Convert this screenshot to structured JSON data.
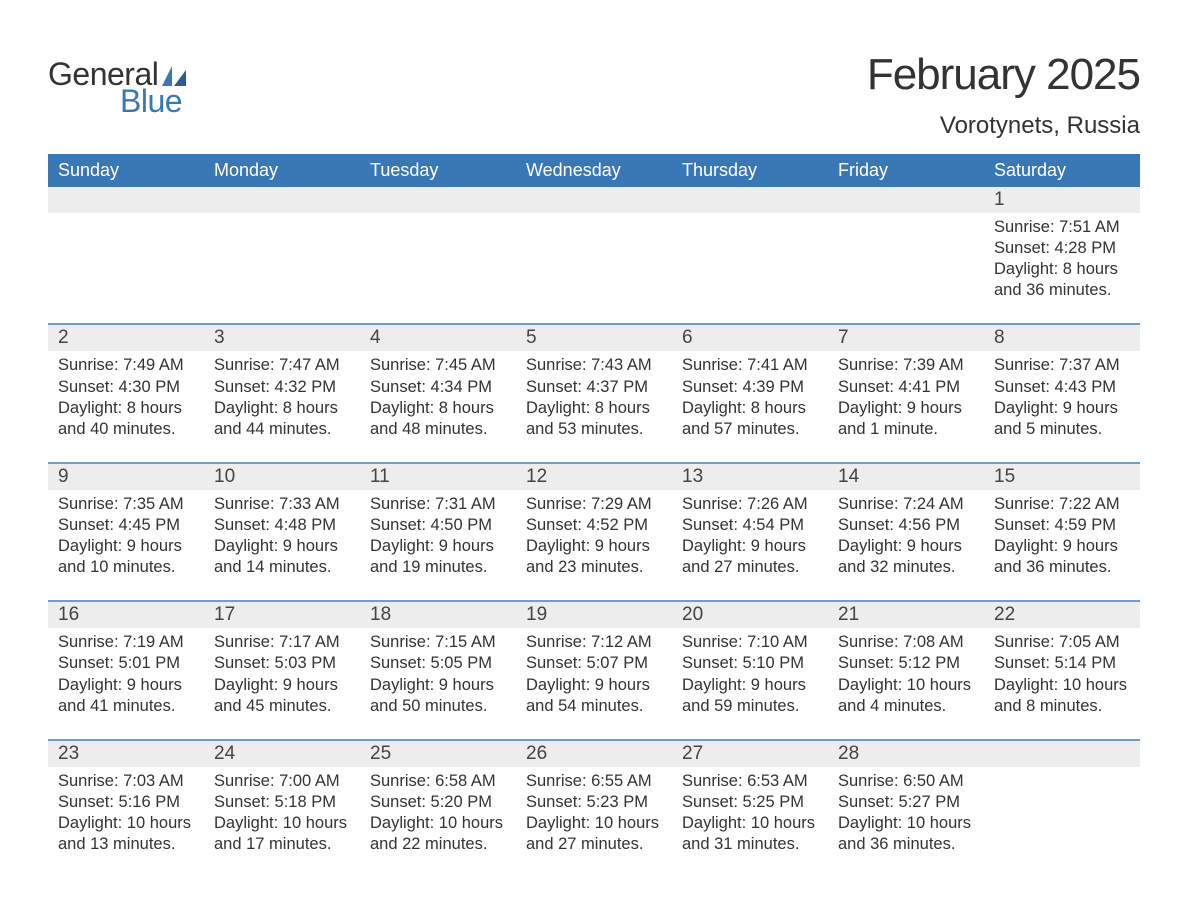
{
  "colors": {
    "header_bg": "#3a78b5",
    "header_text": "#ffffff",
    "week_border": "#6e9fcf",
    "daynum_bg": "#ededed",
    "body_text": "#333333",
    "logo_blue": "#3a78b5",
    "page_bg": "#ffffff"
  },
  "typography": {
    "title_fontsize": 44,
    "location_fontsize": 24,
    "weekday_fontsize": 18,
    "daynum_fontsize": 19,
    "body_fontsize": 16.5,
    "logo_fontsize": 32
  },
  "logo": {
    "word1": "General",
    "word2": "Blue"
  },
  "header": {
    "month_title": "February 2025",
    "location": "Vorotynets, Russia"
  },
  "weekdays": [
    "Sunday",
    "Monday",
    "Tuesday",
    "Wednesday",
    "Thursday",
    "Friday",
    "Saturday"
  ],
  "weeks": [
    [
      {
        "n": "",
        "sr": "",
        "ss": "",
        "d1": "",
        "d2": ""
      },
      {
        "n": "",
        "sr": "",
        "ss": "",
        "d1": "",
        "d2": ""
      },
      {
        "n": "",
        "sr": "",
        "ss": "",
        "d1": "",
        "d2": ""
      },
      {
        "n": "",
        "sr": "",
        "ss": "",
        "d1": "",
        "d2": ""
      },
      {
        "n": "",
        "sr": "",
        "ss": "",
        "d1": "",
        "d2": ""
      },
      {
        "n": "",
        "sr": "",
        "ss": "",
        "d1": "",
        "d2": ""
      },
      {
        "n": "1",
        "sr": "Sunrise: 7:51 AM",
        "ss": "Sunset: 4:28 PM",
        "d1": "Daylight: 8 hours",
        "d2": "and 36 minutes."
      }
    ],
    [
      {
        "n": "2",
        "sr": "Sunrise: 7:49 AM",
        "ss": "Sunset: 4:30 PM",
        "d1": "Daylight: 8 hours",
        "d2": "and 40 minutes."
      },
      {
        "n": "3",
        "sr": "Sunrise: 7:47 AM",
        "ss": "Sunset: 4:32 PM",
        "d1": "Daylight: 8 hours",
        "d2": "and 44 minutes."
      },
      {
        "n": "4",
        "sr": "Sunrise: 7:45 AM",
        "ss": "Sunset: 4:34 PM",
        "d1": "Daylight: 8 hours",
        "d2": "and 48 minutes."
      },
      {
        "n": "5",
        "sr": "Sunrise: 7:43 AM",
        "ss": "Sunset: 4:37 PM",
        "d1": "Daylight: 8 hours",
        "d2": "and 53 minutes."
      },
      {
        "n": "6",
        "sr": "Sunrise: 7:41 AM",
        "ss": "Sunset: 4:39 PM",
        "d1": "Daylight: 8 hours",
        "d2": "and 57 minutes."
      },
      {
        "n": "7",
        "sr": "Sunrise: 7:39 AM",
        "ss": "Sunset: 4:41 PM",
        "d1": "Daylight: 9 hours",
        "d2": "and 1 minute."
      },
      {
        "n": "8",
        "sr": "Sunrise: 7:37 AM",
        "ss": "Sunset: 4:43 PM",
        "d1": "Daylight: 9 hours",
        "d2": "and 5 minutes."
      }
    ],
    [
      {
        "n": "9",
        "sr": "Sunrise: 7:35 AM",
        "ss": "Sunset: 4:45 PM",
        "d1": "Daylight: 9 hours",
        "d2": "and 10 minutes."
      },
      {
        "n": "10",
        "sr": "Sunrise: 7:33 AM",
        "ss": "Sunset: 4:48 PM",
        "d1": "Daylight: 9 hours",
        "d2": "and 14 minutes."
      },
      {
        "n": "11",
        "sr": "Sunrise: 7:31 AM",
        "ss": "Sunset: 4:50 PM",
        "d1": "Daylight: 9 hours",
        "d2": "and 19 minutes."
      },
      {
        "n": "12",
        "sr": "Sunrise: 7:29 AM",
        "ss": "Sunset: 4:52 PM",
        "d1": "Daylight: 9 hours",
        "d2": "and 23 minutes."
      },
      {
        "n": "13",
        "sr": "Sunrise: 7:26 AM",
        "ss": "Sunset: 4:54 PM",
        "d1": "Daylight: 9 hours",
        "d2": "and 27 minutes."
      },
      {
        "n": "14",
        "sr": "Sunrise: 7:24 AM",
        "ss": "Sunset: 4:56 PM",
        "d1": "Daylight: 9 hours",
        "d2": "and 32 minutes."
      },
      {
        "n": "15",
        "sr": "Sunrise: 7:22 AM",
        "ss": "Sunset: 4:59 PM",
        "d1": "Daylight: 9 hours",
        "d2": "and 36 minutes."
      }
    ],
    [
      {
        "n": "16",
        "sr": "Sunrise: 7:19 AM",
        "ss": "Sunset: 5:01 PM",
        "d1": "Daylight: 9 hours",
        "d2": "and 41 minutes."
      },
      {
        "n": "17",
        "sr": "Sunrise: 7:17 AM",
        "ss": "Sunset: 5:03 PM",
        "d1": "Daylight: 9 hours",
        "d2": "and 45 minutes."
      },
      {
        "n": "18",
        "sr": "Sunrise: 7:15 AM",
        "ss": "Sunset: 5:05 PM",
        "d1": "Daylight: 9 hours",
        "d2": "and 50 minutes."
      },
      {
        "n": "19",
        "sr": "Sunrise: 7:12 AM",
        "ss": "Sunset: 5:07 PM",
        "d1": "Daylight: 9 hours",
        "d2": "and 54 minutes."
      },
      {
        "n": "20",
        "sr": "Sunrise: 7:10 AM",
        "ss": "Sunset: 5:10 PM",
        "d1": "Daylight: 9 hours",
        "d2": "and 59 minutes."
      },
      {
        "n": "21",
        "sr": "Sunrise: 7:08 AM",
        "ss": "Sunset: 5:12 PM",
        "d1": "Daylight: 10 hours",
        "d2": "and 4 minutes."
      },
      {
        "n": "22",
        "sr": "Sunrise: 7:05 AM",
        "ss": "Sunset: 5:14 PM",
        "d1": "Daylight: 10 hours",
        "d2": "and 8 minutes."
      }
    ],
    [
      {
        "n": "23",
        "sr": "Sunrise: 7:03 AM",
        "ss": "Sunset: 5:16 PM",
        "d1": "Daylight: 10 hours",
        "d2": "and 13 minutes."
      },
      {
        "n": "24",
        "sr": "Sunrise: 7:00 AM",
        "ss": "Sunset: 5:18 PM",
        "d1": "Daylight: 10 hours",
        "d2": "and 17 minutes."
      },
      {
        "n": "25",
        "sr": "Sunrise: 6:58 AM",
        "ss": "Sunset: 5:20 PM",
        "d1": "Daylight: 10 hours",
        "d2": "and 22 minutes."
      },
      {
        "n": "26",
        "sr": "Sunrise: 6:55 AM",
        "ss": "Sunset: 5:23 PM",
        "d1": "Daylight: 10 hours",
        "d2": "and 27 minutes."
      },
      {
        "n": "27",
        "sr": "Sunrise: 6:53 AM",
        "ss": "Sunset: 5:25 PM",
        "d1": "Daylight: 10 hours",
        "d2": "and 31 minutes."
      },
      {
        "n": "28",
        "sr": "Sunrise: 6:50 AM",
        "ss": "Sunset: 5:27 PM",
        "d1": "Daylight: 10 hours",
        "d2": "and 36 minutes."
      },
      {
        "n": "",
        "sr": "",
        "ss": "",
        "d1": "",
        "d2": ""
      }
    ]
  ]
}
